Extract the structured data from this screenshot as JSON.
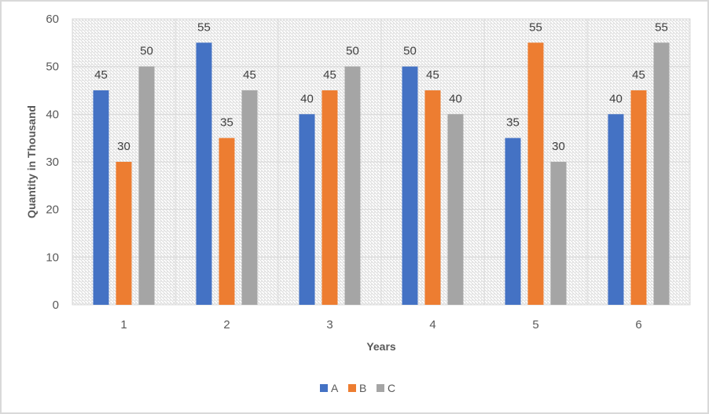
{
  "chart_data": {
    "type": "bar",
    "title": "",
    "xlabel": "Years",
    "ylabel": "Quantity in Thousand",
    "categories": [
      "1",
      "2",
      "3",
      "4",
      "5",
      "6"
    ],
    "series": [
      {
        "name": "A",
        "color": "#4472c4",
        "values": [
          45,
          55,
          40,
          50,
          35,
          40
        ]
      },
      {
        "name": "B",
        "color": "#ed7d31",
        "values": [
          30,
          35,
          45,
          45,
          55,
          45
        ]
      },
      {
        "name": "C",
        "color": "#a5a5a5",
        "values": [
          50,
          45,
          50,
          40,
          30,
          55
        ]
      }
    ],
    "ylim": [
      0,
      60
    ],
    "yticks": [
      0,
      10,
      20,
      30,
      40,
      50,
      60
    ],
    "grid": true,
    "data_labels": true,
    "legend": "bottom",
    "plot_background": "diagonal-hatch"
  }
}
